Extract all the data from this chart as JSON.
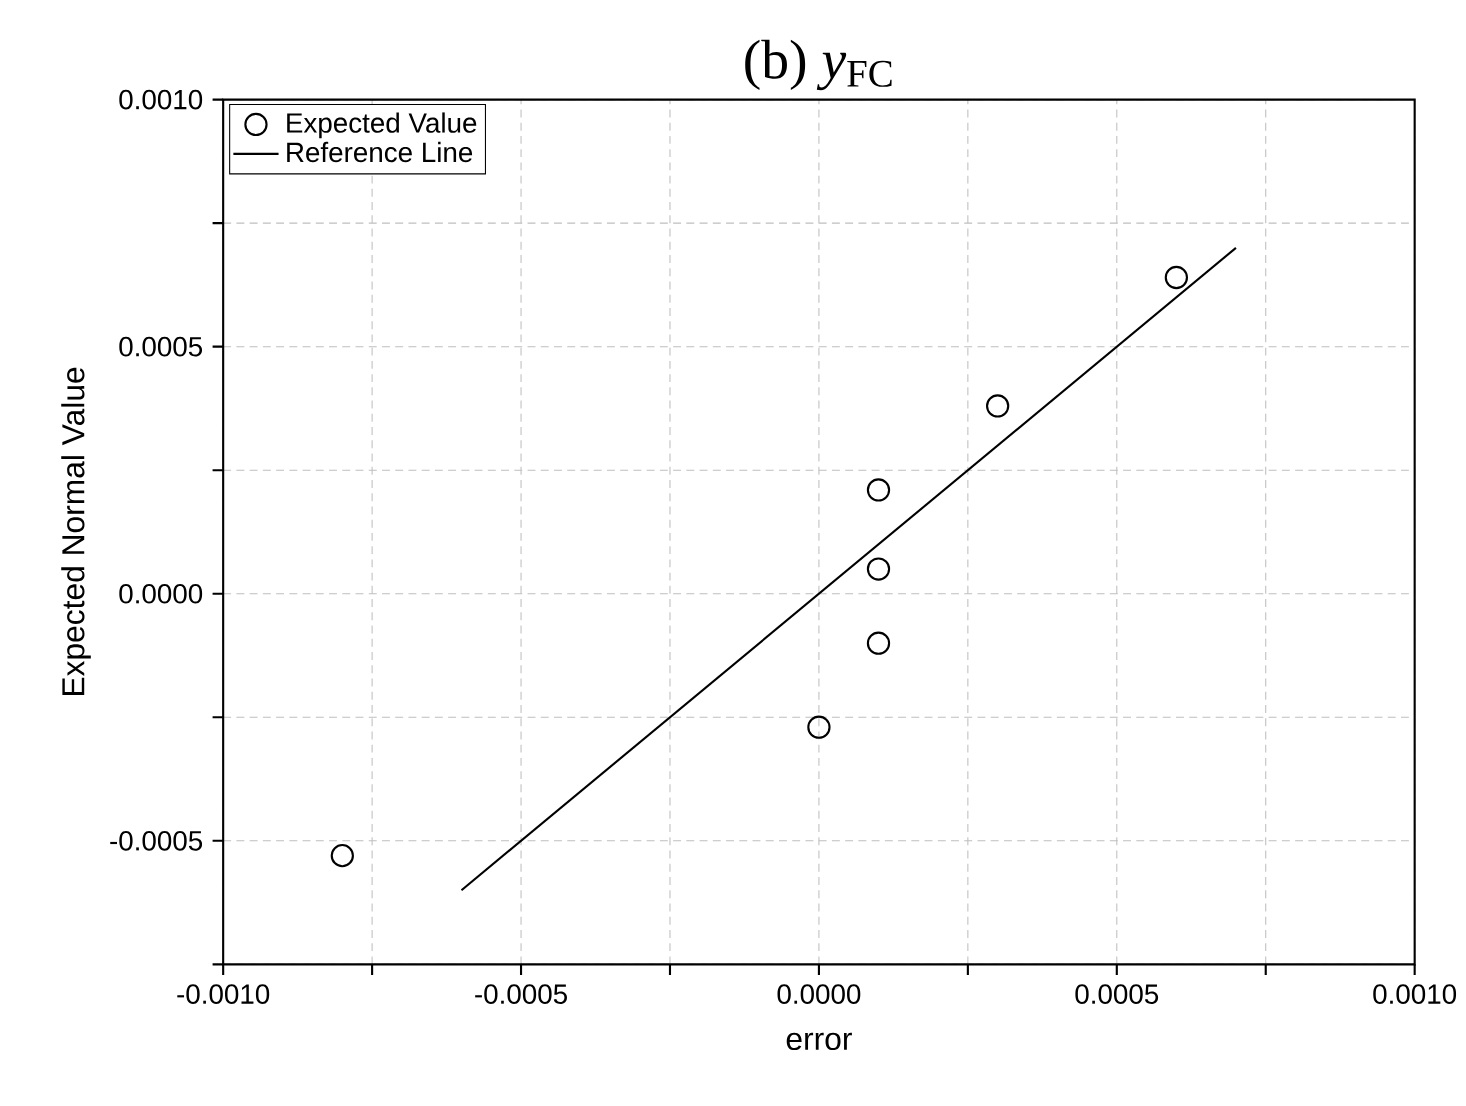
{
  "chart_data": {
    "type": "scatter",
    "title": "(b) *y*$_{FC}$",
    "xlabel": "error",
    "ylabel": "Expected Normal Value",
    "xlim": [
      -0.001,
      0.001
    ],
    "xticks": [
      {
        "value": -0.001,
        "label": "-0.0010"
      },
      {
        "value": -0.00075,
        "label": null
      },
      {
        "value": -0.0005,
        "label": "-0.0005"
      },
      {
        "value": -0.00025,
        "label": null
      },
      {
        "value": 0,
        "label": "0.0000"
      },
      {
        "value": 0.00025,
        "label": null
      },
      {
        "value": 0.0005,
        "label": "0.0005"
      },
      {
        "value": 0.00075,
        "label": null
      },
      {
        "value": 0.001,
        "label": "0.0010"
      }
    ],
    "ylim": [
      -0.00075,
      0.001
    ],
    "yticks": [
      {
        "value": -0.00075,
        "label": null
      },
      {
        "value": -0.0005,
        "label": "-0.0005"
      },
      {
        "value": -0.00025,
        "label": null
      },
      {
        "value": 0,
        "label": "0.0000"
      },
      {
        "value": 0.00025,
        "label": null
      },
      {
        "value": 0.0005,
        "label": "0.0005"
      },
      {
        "value": 0.00075,
        "label": null
      },
      {
        "value": 0.001,
        "label": "0.0010"
      }
    ],
    "grid": true,
    "legend": "top left",
    "series": [
      {
        "name": "Expected Value",
        "marker": "circle",
        "color": "#000000",
        "x": [
          -0.0008,
          0,
          0.0001,
          0.0001,
          0.0001,
          0.0003,
          0.0006
        ],
        "values": [
          -0.00053,
          -0.00027,
          -0.0001,
          5e-05,
          0.00021,
          0.00038,
          0.00064
        ]
      },
      {
        "name": "Reference Line",
        "type": "line",
        "marker": "none",
        "line_style": "solid",
        "color": "#000000",
        "x": [
          -0.0006,
          0.0007
        ],
        "values": [
          -0.0006,
          0.0007
        ]
      }
    ]
  }
}
